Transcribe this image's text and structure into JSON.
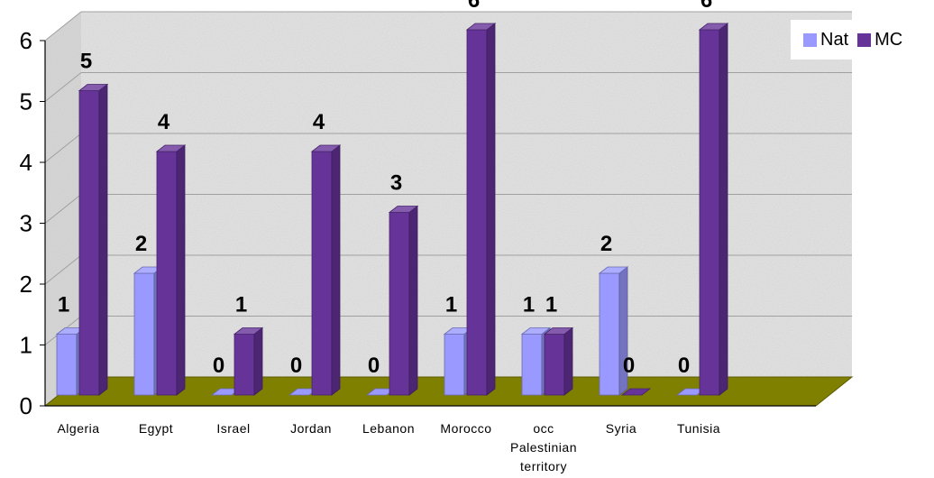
{
  "chart_data": {
    "type": "bar",
    "title": "",
    "xlabel": "",
    "ylabel": "",
    "categories": [
      "Algeria",
      "Egypt",
      "Israel",
      "Jordan",
      "Lebanon",
      "Morocco",
      "occ Palestinian territory",
      "Syria",
      "Tunisia"
    ],
    "series": [
      {
        "name": "Nat",
        "values": [
          1,
          2,
          0,
          0,
          0,
          1,
          1,
          2,
          0
        ],
        "color": "#9999ff"
      },
      {
        "name": "MC",
        "values": [
          5,
          4,
          1,
          4,
          3,
          6,
          1,
          0,
          6
        ],
        "color": "#663399"
      }
    ],
    "ylim": [
      0,
      6
    ],
    "yticks": [
      0,
      1,
      2,
      3,
      4,
      5,
      6
    ],
    "grid": true,
    "legend_position": "top-right",
    "floor_color": "#808000",
    "background": "textured light gray"
  }
}
